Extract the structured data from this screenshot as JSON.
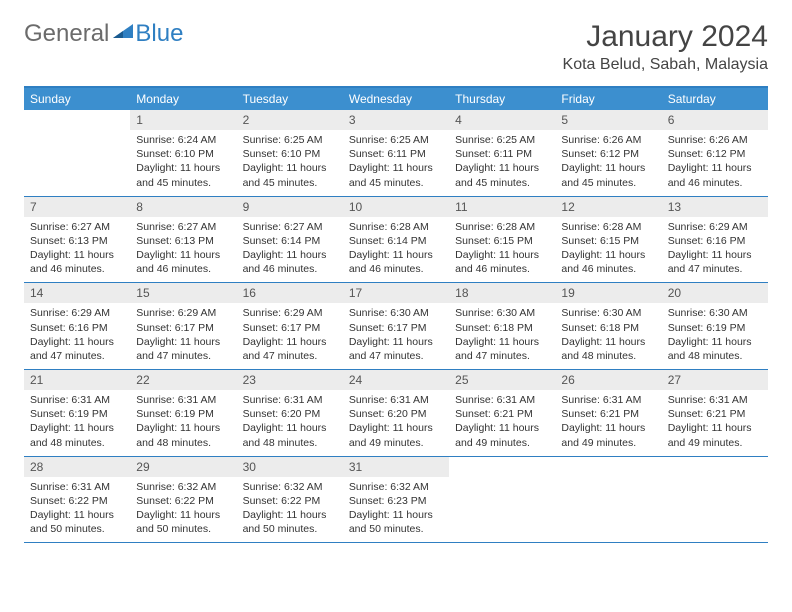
{
  "logo": {
    "part1": "General",
    "part2": "Blue"
  },
  "title": "January 2024",
  "location": "Kota Belud, Sabah, Malaysia",
  "colors": {
    "header_bg": "#3c8fcf",
    "header_text": "#ffffff",
    "border": "#2f7fc2",
    "daynum_bg": "#ececec",
    "text": "#333333",
    "logo_gray": "#6b6b6b",
    "logo_blue": "#2f7fc2"
  },
  "weekdays": [
    "Sunday",
    "Monday",
    "Tuesday",
    "Wednesday",
    "Thursday",
    "Friday",
    "Saturday"
  ],
  "typography": {
    "title_fontsize": 30,
    "location_fontsize": 16,
    "weekday_fontsize": 12,
    "daynum_fontsize": 12,
    "body_fontsize": 10.5
  },
  "layout": {
    "first_day_column": 1,
    "days_in_month": 31,
    "columns": 7,
    "rows": 5
  },
  "days": [
    {
      "n": 1,
      "sunrise": "6:24 AM",
      "sunset": "6:10 PM",
      "daylight": "11 hours and 45 minutes."
    },
    {
      "n": 2,
      "sunrise": "6:25 AM",
      "sunset": "6:10 PM",
      "daylight": "11 hours and 45 minutes."
    },
    {
      "n": 3,
      "sunrise": "6:25 AM",
      "sunset": "6:11 PM",
      "daylight": "11 hours and 45 minutes."
    },
    {
      "n": 4,
      "sunrise": "6:25 AM",
      "sunset": "6:11 PM",
      "daylight": "11 hours and 45 minutes."
    },
    {
      "n": 5,
      "sunrise": "6:26 AM",
      "sunset": "6:12 PM",
      "daylight": "11 hours and 45 minutes."
    },
    {
      "n": 6,
      "sunrise": "6:26 AM",
      "sunset": "6:12 PM",
      "daylight": "11 hours and 46 minutes."
    },
    {
      "n": 7,
      "sunrise": "6:27 AM",
      "sunset": "6:13 PM",
      "daylight": "11 hours and 46 minutes."
    },
    {
      "n": 8,
      "sunrise": "6:27 AM",
      "sunset": "6:13 PM",
      "daylight": "11 hours and 46 minutes."
    },
    {
      "n": 9,
      "sunrise": "6:27 AM",
      "sunset": "6:14 PM",
      "daylight": "11 hours and 46 minutes."
    },
    {
      "n": 10,
      "sunrise": "6:28 AM",
      "sunset": "6:14 PM",
      "daylight": "11 hours and 46 minutes."
    },
    {
      "n": 11,
      "sunrise": "6:28 AM",
      "sunset": "6:15 PM",
      "daylight": "11 hours and 46 minutes."
    },
    {
      "n": 12,
      "sunrise": "6:28 AM",
      "sunset": "6:15 PM",
      "daylight": "11 hours and 46 minutes."
    },
    {
      "n": 13,
      "sunrise": "6:29 AM",
      "sunset": "6:16 PM",
      "daylight": "11 hours and 47 minutes."
    },
    {
      "n": 14,
      "sunrise": "6:29 AM",
      "sunset": "6:16 PM",
      "daylight": "11 hours and 47 minutes."
    },
    {
      "n": 15,
      "sunrise": "6:29 AM",
      "sunset": "6:17 PM",
      "daylight": "11 hours and 47 minutes."
    },
    {
      "n": 16,
      "sunrise": "6:29 AM",
      "sunset": "6:17 PM",
      "daylight": "11 hours and 47 minutes."
    },
    {
      "n": 17,
      "sunrise": "6:30 AM",
      "sunset": "6:17 PM",
      "daylight": "11 hours and 47 minutes."
    },
    {
      "n": 18,
      "sunrise": "6:30 AM",
      "sunset": "6:18 PM",
      "daylight": "11 hours and 47 minutes."
    },
    {
      "n": 19,
      "sunrise": "6:30 AM",
      "sunset": "6:18 PM",
      "daylight": "11 hours and 48 minutes."
    },
    {
      "n": 20,
      "sunrise": "6:30 AM",
      "sunset": "6:19 PM",
      "daylight": "11 hours and 48 minutes."
    },
    {
      "n": 21,
      "sunrise": "6:31 AM",
      "sunset": "6:19 PM",
      "daylight": "11 hours and 48 minutes."
    },
    {
      "n": 22,
      "sunrise": "6:31 AM",
      "sunset": "6:19 PM",
      "daylight": "11 hours and 48 minutes."
    },
    {
      "n": 23,
      "sunrise": "6:31 AM",
      "sunset": "6:20 PM",
      "daylight": "11 hours and 48 minutes."
    },
    {
      "n": 24,
      "sunrise": "6:31 AM",
      "sunset": "6:20 PM",
      "daylight": "11 hours and 49 minutes."
    },
    {
      "n": 25,
      "sunrise": "6:31 AM",
      "sunset": "6:21 PM",
      "daylight": "11 hours and 49 minutes."
    },
    {
      "n": 26,
      "sunrise": "6:31 AM",
      "sunset": "6:21 PM",
      "daylight": "11 hours and 49 minutes."
    },
    {
      "n": 27,
      "sunrise": "6:31 AM",
      "sunset": "6:21 PM",
      "daylight": "11 hours and 49 minutes."
    },
    {
      "n": 28,
      "sunrise": "6:31 AM",
      "sunset": "6:22 PM",
      "daylight": "11 hours and 50 minutes."
    },
    {
      "n": 29,
      "sunrise": "6:32 AM",
      "sunset": "6:22 PM",
      "daylight": "11 hours and 50 minutes."
    },
    {
      "n": 30,
      "sunrise": "6:32 AM",
      "sunset": "6:22 PM",
      "daylight": "11 hours and 50 minutes."
    },
    {
      "n": 31,
      "sunrise": "6:32 AM",
      "sunset": "6:23 PM",
      "daylight": "11 hours and 50 minutes."
    }
  ],
  "labels": {
    "sunrise": "Sunrise:",
    "sunset": "Sunset:",
    "daylight": "Daylight:"
  }
}
